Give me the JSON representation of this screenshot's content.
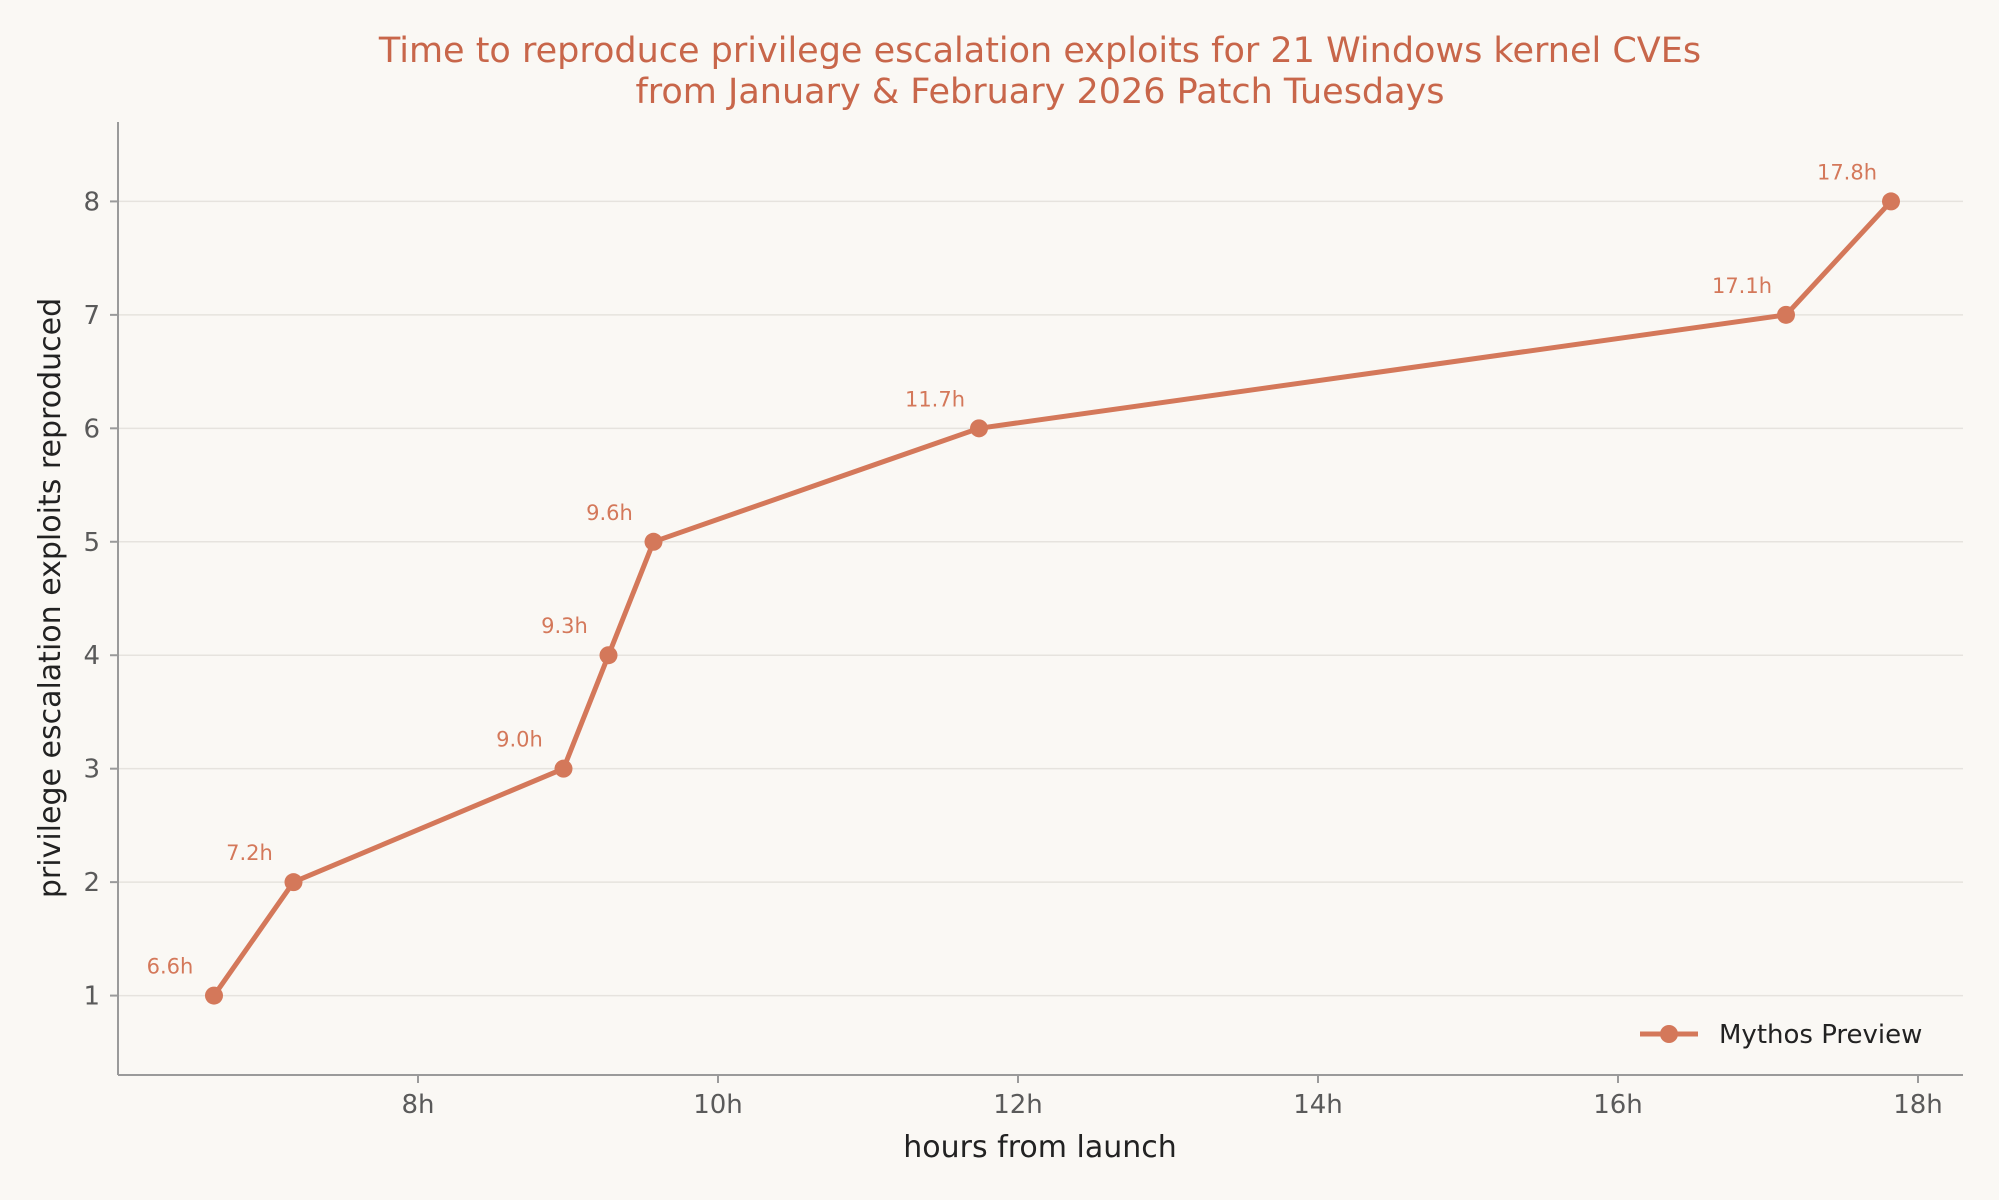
{
  "chart_data": {
    "type": "line",
    "title": "Time to reproduce privilege escalation exploits for 21 Windows kernel CVEs",
    "subtitle": "from January & February 2026 Patch Tuesdays",
    "xlabel": "hours from launch",
    "ylabel": "privilege escalation exploits reproduced",
    "xlim": [
      6.0,
      18.3
    ],
    "ylim": [
      0.3,
      8.7
    ],
    "x_ticks": [
      {
        "value": 8,
        "label": "8h"
      },
      {
        "value": 10,
        "label": "10h"
      },
      {
        "value": 12,
        "label": "12h"
      },
      {
        "value": 14,
        "label": "14h"
      },
      {
        "value": 16,
        "label": "16h"
      },
      {
        "value": 18,
        "label": "18h"
      }
    ],
    "y_ticks": [
      {
        "value": 1,
        "label": "1"
      },
      {
        "value": 2,
        "label": "2"
      },
      {
        "value": 3,
        "label": "3"
      },
      {
        "value": 4,
        "label": "4"
      },
      {
        "value": 5,
        "label": "5"
      },
      {
        "value": 6,
        "label": "6"
      },
      {
        "value": 7,
        "label": "7"
      },
      {
        "value": 8,
        "label": "8"
      }
    ],
    "grid": "horizontal",
    "legend_position": "bottom-right",
    "series": [
      {
        "name": "Mythos Preview",
        "color": "#D4785A",
        "x": [
          6.64,
          7.17,
          8.97,
          9.27,
          9.57,
          11.74,
          17.12,
          17.82
        ],
        "y": [
          1,
          2,
          3,
          4,
          5,
          6,
          7,
          8
        ],
        "point_labels": [
          "6.6h",
          "7.2h",
          "9.0h",
          "9.3h",
          "9.6h",
          "11.7h",
          "17.1h",
          "17.8h"
        ]
      }
    ]
  },
  "colors": {
    "background": "#FAF8F4",
    "title": "#C8664A",
    "series": "#D4785A",
    "grid": "#E6E3DE",
    "axis": "#9A9A9A"
  }
}
